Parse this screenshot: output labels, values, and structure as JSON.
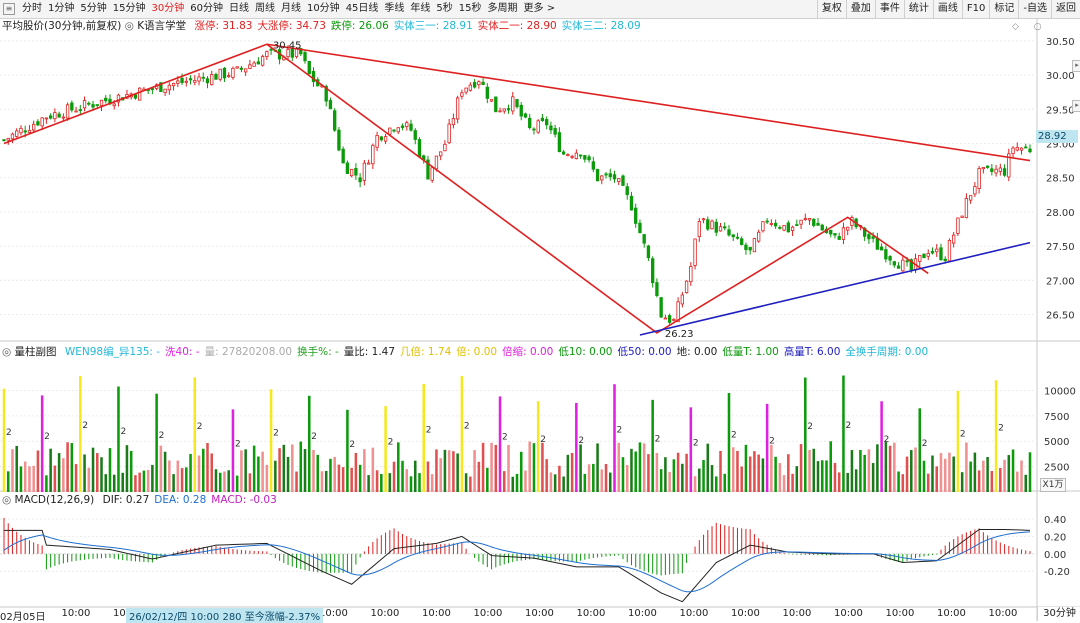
{
  "toolbar": {
    "periods": [
      "分时",
      "1分钟",
      "5分钟",
      "15分钟",
      "30分钟",
      "60分钟",
      "日线",
      "周线",
      "月线",
      "10分钟",
      "45日线",
      "季线",
      "年线",
      "5秒",
      "15秒",
      "多周期",
      "更多 >"
    ],
    "active_period": "30分钟",
    "right_buttons": [
      "复权",
      "叠加",
      "事件",
      "统计",
      "画线",
      "F10",
      "标记",
      "-自选",
      "返回"
    ]
  },
  "main_panel": {
    "title": "平均股价(30分钟,前复权)",
    "indicator_name": "K语言学堂",
    "fields": [
      {
        "label": "涨停: 31.83",
        "color": "#e02020"
      },
      {
        "label": "大涨停: 34.73",
        "color": "#e02020"
      },
      {
        "label": "跌停: 26.06",
        "color": "#0a9a0a"
      },
      {
        "label": "实体三一: 28.91",
        "color": "#20b8d8"
      },
      {
        "label": "实体二一: 28.90",
        "color": "#e02020"
      },
      {
        "label": "实体三二: 28.09",
        "color": "#20b8d8"
      }
    ],
    "current_price": "28.92",
    "high_label": "30.45",
    "low_label": "26.23",
    "y_ticks": [
      "30.50",
      "30.00",
      "29.50",
      "29.00",
      "28.50",
      "28.00",
      "27.50",
      "27.00",
      "26.50"
    ]
  },
  "volume_panel": {
    "title": "量柱副图",
    "fields": [
      {
        "label": "WEN98编_异135: -",
        "color": "#20b8d8"
      },
      {
        "label": "洗40: -",
        "color": "#e020e0"
      },
      {
        "label": "量: 27820208.00",
        "color": "#aaaaaa"
      },
      {
        "label": "换手%: -",
        "color": "#20a020"
      },
      {
        "label": "量比: 1.47",
        "color": "#222222"
      },
      {
        "label": "几倍: 1.74",
        "color": "#e0c000"
      },
      {
        "label": "倍: 0.00",
        "color": "#e0c000"
      },
      {
        "label": "倍缩: 0.00",
        "color": "#e020e0"
      },
      {
        "label": "低10: 0.00",
        "color": "#0a9a0a"
      },
      {
        "label": "低50: 0.00",
        "color": "#2020c0"
      },
      {
        "label": "地: 0.00",
        "color": "#222222"
      },
      {
        "label": "低量T: 1.00",
        "color": "#0a9a0a"
      },
      {
        "label": "高量T: 6.00",
        "color": "#2020c0"
      },
      {
        "label": "全换手周期: 0.00",
        "color": "#20b8d8"
      }
    ],
    "y_ticks": [
      "10000",
      "7500",
      "5000",
      "2500"
    ],
    "scale_label": "X1万"
  },
  "macd_panel": {
    "title": "MACD(12,26,9)",
    "fields": [
      {
        "label": "DIF: 0.27",
        "color": "#222222"
      },
      {
        "label": "DEA: 0.28",
        "color": "#1e6fd0"
      },
      {
        "label": "MACD: -0.03",
        "color": "#c020c0"
      }
    ],
    "y_ticks": [
      "0.40",
      "0.20",
      "0.00",
      "-0.20"
    ]
  },
  "date_axis": {
    "labels": [
      "02月05日",
      "10:00",
      "10:00",
      "10:00",
      "10:00",
      "10:00",
      "10:00",
      "10:00",
      "10:00",
      "10:00",
      "10:00",
      "10:00",
      "10:00",
      "10:00",
      "10:00",
      "10:00",
      "10:00",
      "10:00",
      "10:00",
      "10:00"
    ],
    "cursor_label": "26/02/12/四 10:00 280 至今涨幅-2.37%",
    "period_label": "30分钟"
  },
  "chart_data": {
    "type": "candlestick",
    "ylim": [
      26.2,
      30.6
    ],
    "anchors": [
      [
        0,
        29.05
      ],
      [
        10,
        29.4
      ],
      [
        22,
        29.6
      ],
      [
        38,
        29.85
      ],
      [
        55,
        30.05
      ],
      [
        62,
        30.3
      ],
      [
        70,
        30.3
      ],
      [
        72,
        30.0
      ],
      [
        76,
        29.7
      ],
      [
        80,
        28.7
      ],
      [
        84,
        28.5
      ],
      [
        88,
        29.1
      ],
      [
        93,
        29.3
      ],
      [
        96,
        29.2
      ],
      [
        100,
        28.55
      ],
      [
        104,
        29.0
      ],
      [
        108,
        29.8
      ],
      [
        112,
        29.95
      ],
      [
        116,
        29.5
      ],
      [
        120,
        29.6
      ],
      [
        124,
        29.2
      ],
      [
        128,
        29.3
      ],
      [
        132,
        28.85
      ],
      [
        136,
        28.9
      ],
      [
        140,
        28.5
      ],
      [
        144,
        28.5
      ],
      [
        148,
        28.1
      ],
      [
        152,
        27.3
      ],
      [
        155,
        26.5
      ],
      [
        158,
        26.4
      ],
      [
        162,
        27.2
      ],
      [
        164,
        27.9
      ],
      [
        170,
        27.7
      ],
      [
        176,
        27.4
      ],
      [
        180,
        27.9
      ],
      [
        185,
        27.75
      ],
      [
        190,
        27.9
      ],
      [
        196,
        27.6
      ],
      [
        200,
        27.85
      ],
      [
        205,
        27.55
      ],
      [
        210,
        27.3
      ],
      [
        214,
        27.15
      ],
      [
        218,
        27.45
      ],
      [
        222,
        27.35
      ],
      [
        226,
        28.0
      ],
      [
        230,
        28.55
      ],
      [
        234,
        28.6
      ],
      [
        236,
        28.6
      ],
      [
        238,
        28.95
      ],
      [
        242,
        28.92
      ]
    ],
    "gap_bars": [
      [
        224,
        226
      ]
    ],
    "bar_count": 243,
    "trend_lines": [
      {
        "color": "#e02020",
        "points": [
          [
            0,
            29.0
          ],
          [
            62,
            30.45
          ],
          [
            154,
            26.23
          ],
          [
            199,
            27.92
          ],
          [
            218,
            27.1
          ]
        ]
      },
      {
        "color": "#e02020",
        "points": [
          [
            62,
            30.45
          ],
          [
            242,
            28.75
          ]
        ]
      },
      {
        "color": "#2020c0",
        "points": [
          [
            150,
            26.2
          ],
          [
            242,
            27.55
          ]
        ]
      }
    ],
    "volume_ylim": [
      0,
      13000
    ],
    "macd_ylim": [
      -0.6,
      0.55
    ],
    "macd_peaks": [
      [
        10,
        0.1
      ],
      [
        25,
        0.05
      ],
      [
        35,
        -0.06
      ],
      [
        50,
        0.1
      ],
      [
        62,
        0.12
      ],
      [
        75,
        -0.2
      ],
      [
        82,
        -0.35
      ],
      [
        92,
        0.06
      ],
      [
        102,
        0.12
      ],
      [
        108,
        0.2
      ],
      [
        115,
        -0.02
      ],
      [
        125,
        -0.05
      ],
      [
        135,
        -0.15
      ],
      [
        145,
        -0.15
      ],
      [
        155,
        -0.45
      ],
      [
        160,
        -0.55
      ],
      [
        168,
        -0.1
      ],
      [
        176,
        0.1
      ],
      [
        185,
        0.02
      ],
      [
        195,
        0.0
      ],
      [
        205,
        0.0
      ],
      [
        212,
        -0.1
      ],
      [
        220,
        -0.08
      ],
      [
        230,
        0.28
      ],
      [
        236,
        0.28
      ],
      [
        242,
        0.27
      ]
    ]
  }
}
